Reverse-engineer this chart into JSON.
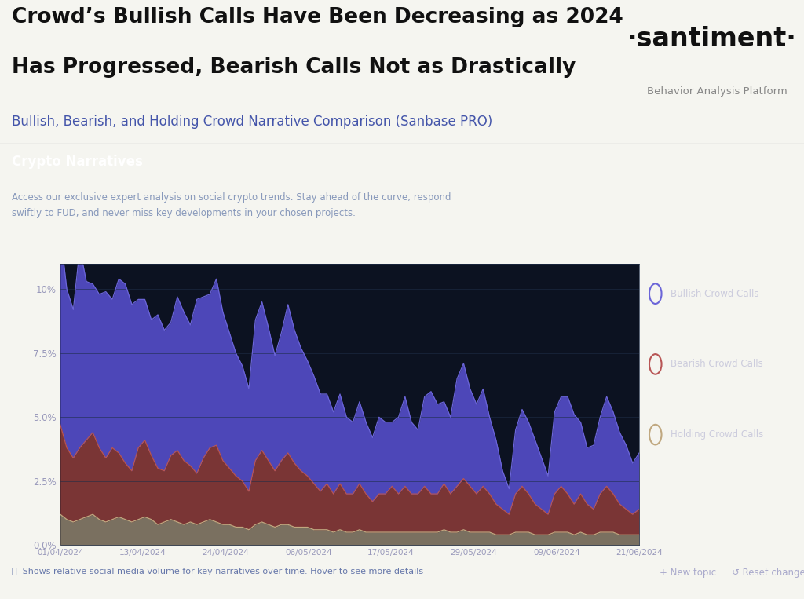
{
  "title_line1": "Crowd’s Bullish Calls Have Been Decreasing as 2024",
  "title_line2": "Has Progressed, Bearish Calls Not as Drastically",
  "subtitle": "Bullish, Bearish, and Holding Crowd Narrative Comparison (Sanbase PRO)",
  "santiment_label": "·santiment·",
  "santiment_sub": "Behavior Analysis Platform",
  "panel_title": "Crypto Narratives",
  "panel_desc": "Access our exclusive expert analysis on social crypto trends. Stay ahead of the curve, respond\nswiftly to FUD, and never miss key developments in your chosen projects.",
  "footer": "ⓘ  Shows relative social media volume for key narratives over time. Hover to see more details",
  "footer_right1": "+ New topic",
  "footer_right2": "↺ Reset changes",
  "x_labels": [
    "01/04/2024",
    "13/04/2024",
    "24/04/2024",
    "06/05/2024",
    "17/05/2024",
    "29/05/2024",
    "09/06/2024",
    "21/06/2024"
  ],
  "y_labels": [
    "0.0%",
    "2.5%",
    "5.0%",
    "7.5%",
    "10%"
  ],
  "y_values": [
    0,
    2.5,
    5.0,
    7.5,
    10.0
  ],
  "bg_outer": "#f5f5f0",
  "bg_dark": "#111827",
  "bg_panel": "#141d2e",
  "bg_chart": "#0c1221",
  "color_bullish": "#4d47b8",
  "color_bullish_line": "#6b65d8",
  "color_bearish": "#7a3535",
  "color_bearish_line": "#b85555",
  "color_holding": "#7a7060",
  "color_holding_line": "#c0a880",
  "legend_bullish": "Bullish Crowd Calls",
  "legend_bearish": "Bearish Crowd Calls",
  "legend_holding": "Holding Crowd Calls",
  "n_points": 90,
  "bullish_values": [
    7.5,
    6.2,
    5.8,
    7.8,
    6.2,
    5.8,
    6.0,
    6.5,
    5.8,
    6.8,
    7.0,
    6.5,
    5.8,
    5.5,
    5.3,
    6.0,
    5.5,
    5.2,
    6.0,
    5.8,
    5.5,
    6.8,
    6.3,
    6.0,
    6.5,
    5.8,
    5.3,
    4.8,
    4.5,
    4.0,
    5.5,
    5.8,
    5.2,
    4.5,
    5.0,
    5.8,
    5.2,
    4.8,
    4.5,
    4.2,
    3.8,
    3.5,
    3.2,
    3.5,
    3.0,
    2.8,
    3.2,
    2.8,
    2.5,
    3.0,
    2.8,
    2.5,
    3.0,
    3.5,
    2.8,
    2.5,
    3.5,
    4.0,
    3.5,
    3.2,
    3.0,
    4.2,
    4.5,
    3.8,
    3.5,
    3.8,
    3.0,
    2.5,
    1.5,
    1.0,
    2.5,
    3.0,
    2.8,
    2.5,
    2.0,
    1.5,
    3.2,
    3.5,
    3.8,
    3.5,
    2.8,
    2.2,
    2.5,
    3.0,
    3.5,
    3.2,
    2.8,
    2.5,
    2.0,
    2.2
  ],
  "bearish_values": [
    3.5,
    2.8,
    2.5,
    2.8,
    3.0,
    3.2,
    2.8,
    2.5,
    2.8,
    2.5,
    2.2,
    2.0,
    2.8,
    3.0,
    2.5,
    2.2,
    2.0,
    2.5,
    2.8,
    2.5,
    2.2,
    2.0,
    2.5,
    2.8,
    3.0,
    2.5,
    2.2,
    2.0,
    1.8,
    1.5,
    2.5,
    2.8,
    2.5,
    2.2,
    2.5,
    2.8,
    2.5,
    2.2,
    2.0,
    1.8,
    1.5,
    1.8,
    1.5,
    1.8,
    1.5,
    1.5,
    1.8,
    1.5,
    1.2,
    1.5,
    1.5,
    1.8,
    1.5,
    1.8,
    1.5,
    1.5,
    1.8,
    1.5,
    1.5,
    1.8,
    1.5,
    1.8,
    2.0,
    1.8,
    1.5,
    1.8,
    1.5,
    1.2,
    1.0,
    0.8,
    1.5,
    1.8,
    1.5,
    1.2,
    1.0,
    0.8,
    1.5,
    1.8,
    1.5,
    1.2,
    1.5,
    1.2,
    1.0,
    1.5,
    1.8,
    1.5,
    1.2,
    1.0,
    0.8,
    1.0
  ],
  "holding_values": [
    1.2,
    1.0,
    0.9,
    1.0,
    1.1,
    1.2,
    1.0,
    0.9,
    1.0,
    1.1,
    1.0,
    0.9,
    1.0,
    1.1,
    1.0,
    0.8,
    0.9,
    1.0,
    0.9,
    0.8,
    0.9,
    0.8,
    0.9,
    1.0,
    0.9,
    0.8,
    0.8,
    0.7,
    0.7,
    0.6,
    0.8,
    0.9,
    0.8,
    0.7,
    0.8,
    0.8,
    0.7,
    0.7,
    0.7,
    0.6,
    0.6,
    0.6,
    0.5,
    0.6,
    0.5,
    0.5,
    0.6,
    0.5,
    0.5,
    0.5,
    0.5,
    0.5,
    0.5,
    0.5,
    0.5,
    0.5,
    0.5,
    0.5,
    0.5,
    0.6,
    0.5,
    0.5,
    0.6,
    0.5,
    0.5,
    0.5,
    0.5,
    0.4,
    0.4,
    0.4,
    0.5,
    0.5,
    0.5,
    0.4,
    0.4,
    0.4,
    0.5,
    0.5,
    0.5,
    0.4,
    0.5,
    0.4,
    0.4,
    0.5,
    0.5,
    0.5,
    0.4,
    0.4,
    0.4,
    0.4
  ]
}
